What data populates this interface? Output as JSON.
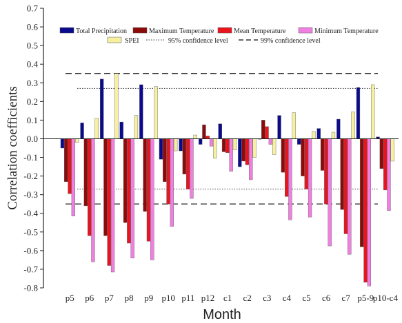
{
  "chart_data": {
    "type": "bar",
    "title": "",
    "xlabel": "Month",
    "ylabel": "Correlation coefficients",
    "ylim": [
      -0.8,
      0.7
    ],
    "yticks": [
      "-0.8",
      "-0.7",
      "-0.6",
      "-0.5",
      "-0.4",
      "-0.3",
      "-0.2",
      "-0.1",
      "0.0",
      "0.1",
      "0.2",
      "0.3",
      "0.4",
      "0.5",
      "0.6",
      "0.7"
    ],
    "grid": false,
    "legend_position": "top",
    "categories": [
      "p5",
      "p6",
      "p7",
      "p8",
      "p9",
      "p10",
      "p11",
      "p12",
      "c1",
      "c2",
      "c3",
      "c4",
      "c5",
      "c6",
      "c7",
      "p5-9",
      "p10-c4"
    ],
    "series": [
      {
        "name": "Total Precipitation",
        "color": "#0a0a8c",
        "values": [
          -0.05,
          0.085,
          0.32,
          0.09,
          0.29,
          -0.11,
          -0.065,
          -0.03,
          0.08,
          -0.15,
          0.0,
          0.125,
          -0.03,
          0.055,
          0.105,
          0.275,
          0.01
        ]
      },
      {
        "name": "Maximum Temperature",
        "color": "#8b0a0a",
        "values": [
          -0.23,
          -0.36,
          -0.52,
          -0.45,
          -0.39,
          -0.23,
          -0.19,
          0.075,
          -0.07,
          -0.12,
          0.1,
          -0.18,
          -0.2,
          -0.17,
          -0.38,
          -0.58,
          -0.16
        ]
      },
      {
        "name": "Mean Temperature",
        "color": "#e8141e",
        "values": [
          -0.295,
          -0.52,
          -0.68,
          -0.56,
          -0.55,
          -0.35,
          -0.27,
          0.015,
          -0.075,
          -0.14,
          0.065,
          -0.31,
          -0.27,
          -0.35,
          -0.51,
          -0.77,
          -0.275
        ]
      },
      {
        "name": "Minimum Temperature",
        "color": "#f080e0",
        "values": [
          -0.415,
          -0.66,
          -0.715,
          -0.64,
          -0.65,
          -0.47,
          -0.32,
          -0.04,
          -0.175,
          -0.22,
          -0.03,
          -0.435,
          -0.42,
          -0.575,
          -0.62,
          -0.79,
          -0.385
        ]
      },
      {
        "name": "SPEI",
        "color": "#f6f0a0",
        "values": [
          -0.02,
          0.11,
          0.35,
          0.125,
          0.28,
          -0.065,
          0.02,
          -0.105,
          -0.06,
          -0.1,
          -0.085,
          0.14,
          0.04,
          0.035,
          0.145,
          0.29,
          -0.12
        ]
      }
    ],
    "reference_lines": [
      {
        "name": "95% confidence level",
        "style": "dotted",
        "values": [
          0.27,
          -0.27
        ]
      },
      {
        "name": "99% confidence level",
        "style": "dashed",
        "values": [
          0.35,
          -0.35
        ]
      }
    ]
  }
}
